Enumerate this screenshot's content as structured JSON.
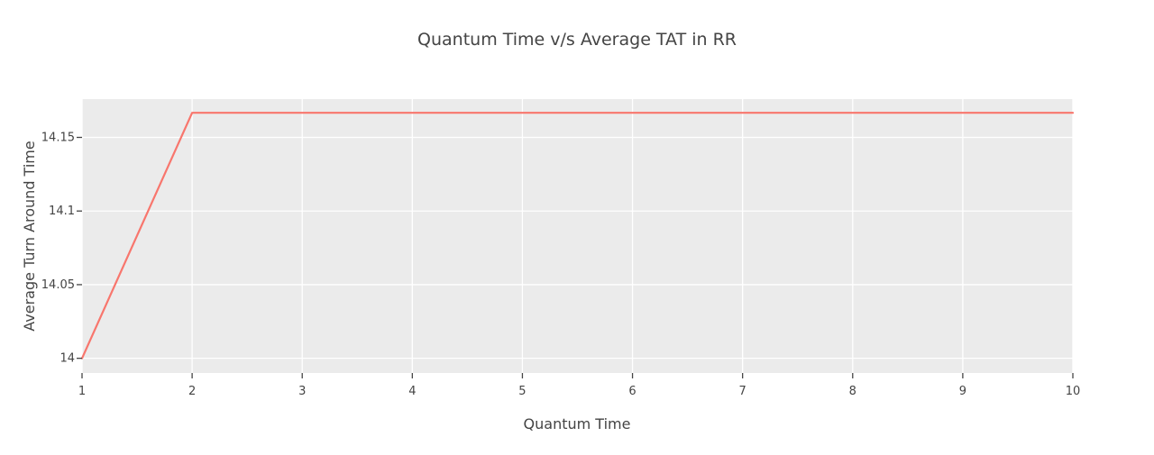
{
  "chart_data": {
    "type": "line",
    "title": "Quantum Time v/s Average TAT in RR",
    "xlabel": "Quantum Time",
    "ylabel": "Average Turn Around Time",
    "x": [
      1,
      2,
      3,
      4,
      5,
      6,
      7,
      8,
      9,
      10
    ],
    "series": [
      {
        "values": [
          14.0,
          14.1667,
          14.1667,
          14.1667,
          14.1667,
          14.1667,
          14.1667,
          14.1667,
          14.1667,
          14.1667
        ]
      }
    ],
    "xlim": [
      1,
      10
    ],
    "ylim": [
      13.99,
      14.176
    ],
    "x_ticks": [
      1,
      2,
      3,
      4,
      5,
      6,
      7,
      8,
      9,
      10
    ],
    "x_tick_labels": [
      "1",
      "2",
      "3",
      "4",
      "5",
      "6",
      "7",
      "8",
      "9",
      "10"
    ],
    "y_ticks": [
      14,
      14.05,
      14.1,
      14.15
    ],
    "y_tick_labels": [
      "14",
      "14.05",
      "14.1",
      "14.15"
    ],
    "grid": true,
    "colors": {
      "plot_background": "#ebebeb",
      "line": "#f8766d",
      "grid": "#ffffff",
      "text": "#444444"
    }
  }
}
